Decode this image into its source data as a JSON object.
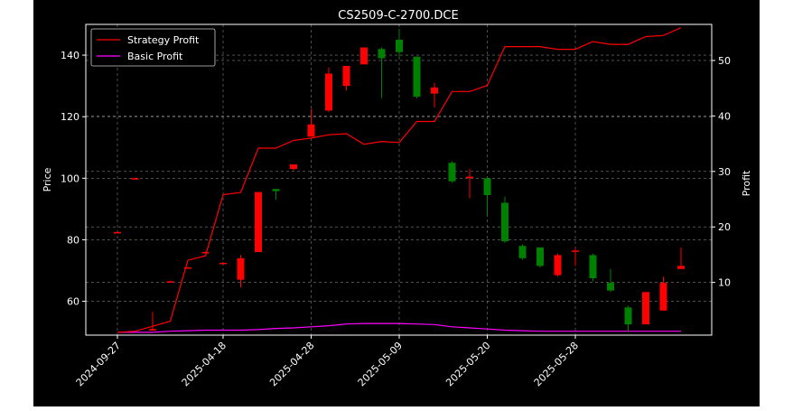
{
  "chart_data": {
    "type": "candlestick",
    "title": "CS2509-C-2700.DCE",
    "ylabel_left": "Price",
    "ylabel_right": "Profit",
    "xlabel": "",
    "ylim_left": [
      49,
      150
    ],
    "ylim_right": [
      0.5,
      56.5
    ],
    "yticks_left": [
      60,
      80,
      100,
      120,
      140
    ],
    "yticks_right": [
      10,
      20,
      30,
      40,
      50
    ],
    "xtick_labels": [
      "2024-09-27",
      "2025-04-18",
      "2025-04-28",
      "2025-05-09",
      "2025-05-20",
      "2025-05-28"
    ],
    "xtick_positions": [
      0,
      6,
      11,
      16,
      21,
      26
    ],
    "grid": true,
    "legend_position": "upper-left",
    "colors": {
      "background": "#000000",
      "up": "#ff0000",
      "down": "#008000",
      "strategy": "#ff0000",
      "basic": "#ff00ff",
      "axes": "#ffffff",
      "grid": "#808080"
    },
    "candles": [
      {
        "o": 82.5,
        "h": 82.8,
        "l": 82.3,
        "c": 82.5
      },
      {
        "o": 100.0,
        "h": 100.2,
        "l": 99.8,
        "c": 100.0
      },
      {
        "o": 50.5,
        "h": 56.5,
        "l": 50.5,
        "c": 51.0
      },
      {
        "o": 66.5,
        "h": 66.7,
        "l": 66.3,
        "c": 66.5
      },
      {
        "o": 71.0,
        "h": 71.2,
        "l": 70.8,
        "c": 71.0
      },
      {
        "o": 76.0,
        "h": 76.2,
        "l": 75.8,
        "c": 76.0
      },
      {
        "o": 72.5,
        "h": 72.8,
        "l": 72.3,
        "c": 72.5
      },
      {
        "o": 67.0,
        "h": 75.0,
        "l": 64.5,
        "c": 74.0
      },
      {
        "o": 76.0,
        "h": 95.5,
        "l": 76.0,
        "c": 95.5
      },
      {
        "o": 96.5,
        "h": 96.5,
        "l": 93.0,
        "c": 95.8
      },
      {
        "o": 103.0,
        "h": 104.5,
        "l": 102.5,
        "c": 104.5
      },
      {
        "o": 113.5,
        "h": 122.5,
        "l": 113.5,
        "c": 117.5
      },
      {
        "o": 122.0,
        "h": 136.0,
        "l": 121.5,
        "c": 134.0
      },
      {
        "o": 130.0,
        "h": 136.5,
        "l": 128.5,
        "c": 136.5
      },
      {
        "o": 137.0,
        "h": 142.5,
        "l": 137.0,
        "c": 142.5
      },
      {
        "o": 142.0,
        "h": 142.5,
        "l": 126.0,
        "c": 139.0
      },
      {
        "o": 145.0,
        "h": 148.5,
        "l": 139.0,
        "c": 141.0
      },
      {
        "o": 139.5,
        "h": 139.5,
        "l": 126.0,
        "c": 126.5
      },
      {
        "o": 127.5,
        "h": 131.0,
        "l": 123.0,
        "c": 129.5
      },
      {
        "o": 105.0,
        "h": 105.5,
        "l": 98.5,
        "c": 99.0
      },
      {
        "o": 100.0,
        "h": 103.0,
        "l": 93.5,
        "c": 100.5
      },
      {
        "o": 100.0,
        "h": 100.0,
        "l": 88.0,
        "c": 94.5
      },
      {
        "o": 92.0,
        "h": 94.0,
        "l": 79.0,
        "c": 79.5
      },
      {
        "o": 78.0,
        "h": 78.5,
        "l": 73.5,
        "c": 74.0
      },
      {
        "o": 77.5,
        "h": 77.5,
        "l": 71.0,
        "c": 71.5
      },
      {
        "o": 68.5,
        "h": 75.5,
        "l": 68.0,
        "c": 75.0
      },
      {
        "o": 76.5,
        "h": 77.5,
        "l": 71.5,
        "c": 76.5
      },
      {
        "o": 75.0,
        "h": 75.5,
        "l": 66.5,
        "c": 67.5
      },
      {
        "o": 66.0,
        "h": 70.5,
        "l": 63.0,
        "c": 63.5
      },
      {
        "o": 58.0,
        "h": 58.5,
        "l": 50.0,
        "c": 52.5
      },
      {
        "o": 52.5,
        "h": 63.0,
        "l": 52.5,
        "c": 63.0
      },
      {
        "o": 57.0,
        "h": 68.0,
        "l": 57.0,
        "c": 66.0
      },
      {
        "o": 70.5,
        "h": 77.5,
        "l": 70.5,
        "c": 71.5
      }
    ],
    "series": [
      {
        "name": "Strategy Profit",
        "values": [
          1.0,
          1.2,
          2.1,
          3.0,
          14.0,
          14.8,
          25.8,
          26.2,
          34.2,
          34.2,
          35.6,
          36.0,
          36.6,
          36.8,
          34.9,
          35.4,
          35.2,
          39.0,
          39.0,
          44.4,
          44.4,
          45.5,
          52.5,
          52.5,
          52.5,
          52.0,
          52.0,
          53.4,
          52.9,
          52.9,
          54.3,
          54.5,
          55.9
        ]
      },
      {
        "name": "Basic Profit",
        "values": [
          1.0,
          1.0,
          1.0,
          1.2,
          1.3,
          1.4,
          1.4,
          1.4,
          1.5,
          1.7,
          1.8,
          2.0,
          2.2,
          2.5,
          2.6,
          2.6,
          2.6,
          2.5,
          2.4,
          2.0,
          1.8,
          1.6,
          1.4,
          1.3,
          1.2,
          1.2,
          1.2,
          1.2,
          1.2,
          1.2,
          1.2,
          1.2,
          1.2
        ]
      }
    ]
  }
}
